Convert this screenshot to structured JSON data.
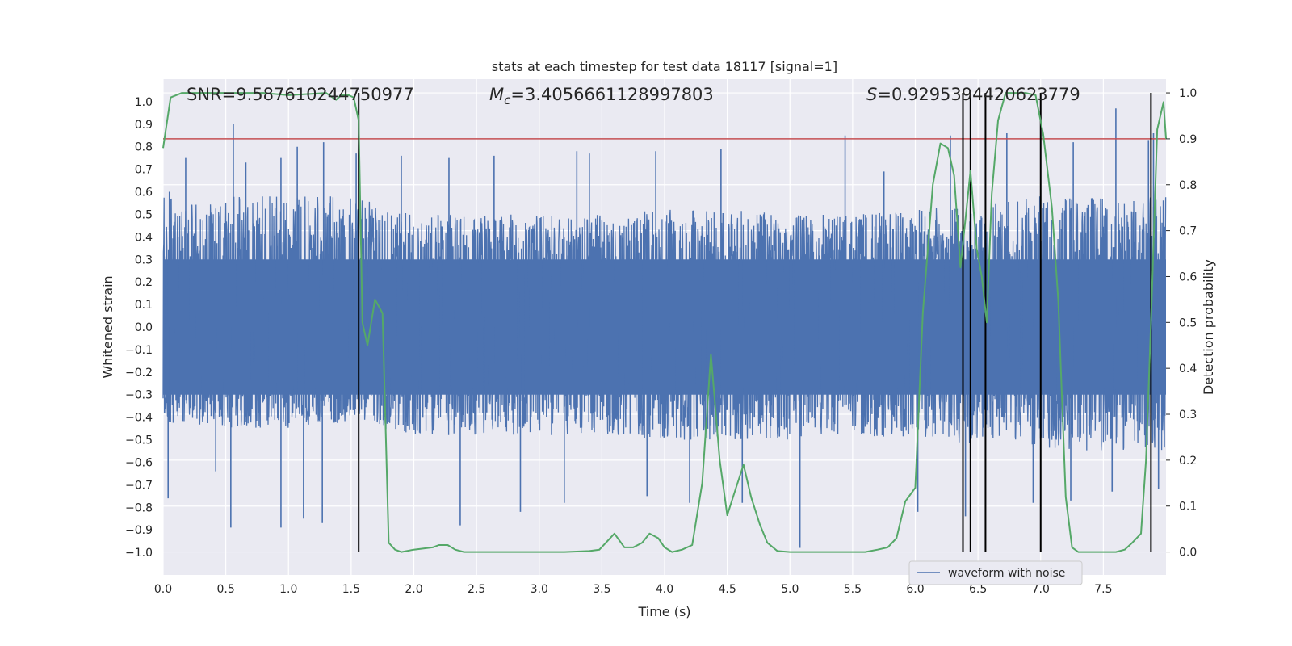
{
  "chart_data": {
    "type": "line",
    "title": "stats at each timestep for test data 18117 [signal=1]",
    "xlabel": "Time (s)",
    "ylabel_left": "Whitened strain",
    "ylabel_right": "Detection probability",
    "xlim": [
      0.0,
      8.0
    ],
    "ylim_left": [
      -1.1,
      1.1
    ],
    "ylim_right": [
      -0.05,
      1.03
    ],
    "x_ticks": [
      "0.0",
      "0.5",
      "1.0",
      "1.5",
      "2.0",
      "2.5",
      "3.0",
      "3.5",
      "4.0",
      "4.5",
      "5.0",
      "5.5",
      "6.0",
      "6.5",
      "7.0",
      "7.5"
    ],
    "y_ticks_left": [
      "1.0",
      "0.9",
      "0.8",
      "0.7",
      "0.6",
      "0.5",
      "0.4",
      "0.3",
      "0.2",
      "0.1",
      "0.0",
      "-0.1",
      "-0.2",
      "-0.3",
      "-0.4",
      "-0.5",
      "-0.6",
      "-0.7",
      "-0.8",
      "-0.9",
      "-1.0"
    ],
    "y_ticks_right": [
      "1.0",
      "0.9",
      "0.8",
      "0.7",
      "0.6",
      "0.5",
      "0.4",
      "0.3",
      "0.2",
      "0.1",
      "0.0"
    ],
    "annotations": {
      "snr": "SNR=9.587610244750977",
      "mc_symbol": "M",
      "mc_subscript": "c",
      "mc_value": "=3.4056661128997803",
      "s_symbol": "S",
      "s_value": "=0.9295394420623779"
    },
    "legend": {
      "placement": "lower-right",
      "entries": [
        "waveform with noise"
      ]
    },
    "grid": true,
    "threshold": {
      "axis": "right",
      "value": 0.9,
      "color": "#c44e52"
    },
    "vertical_markers": [
      1.56,
      6.38,
      6.44,
      6.56,
      7.0,
      7.88
    ],
    "series": [
      {
        "name": "waveform with noise",
        "axis": "left",
        "color": "#4c72b0",
        "envelope": {
          "x": [
            0.0,
            0.5,
            1.0,
            1.5,
            2.0,
            2.5,
            3.0,
            3.5,
            4.0,
            4.5,
            5.0,
            5.5,
            6.0,
            6.5,
            7.0,
            7.5,
            8.0
          ],
          "upper": [
            0.58,
            0.58,
            0.58,
            0.58,
            0.5,
            0.5,
            0.5,
            0.5,
            0.52,
            0.52,
            0.5,
            0.5,
            0.52,
            0.55,
            0.58,
            0.58,
            0.58
          ],
          "lower": [
            -0.42,
            -0.45,
            -0.45,
            -0.42,
            -0.48,
            -0.48,
            -0.48,
            -0.48,
            -0.5,
            -0.5,
            -0.5,
            -0.48,
            -0.5,
            -0.52,
            -0.55,
            -0.55,
            -0.55
          ],
          "dense_top": 0.3,
          "dense_bottom": -0.3
        },
        "spikes": [
          [
            0.05,
            0.6
          ],
          [
            0.04,
            -0.76
          ],
          [
            0.18,
            0.75
          ],
          [
            0.42,
            -0.64
          ],
          [
            0.56,
            0.9
          ],
          [
            0.54,
            -0.89
          ],
          [
            0.66,
            0.73
          ],
          [
            0.94,
            0.75
          ],
          [
            0.94,
            -0.89
          ],
          [
            1.07,
            0.8
          ],
          [
            1.12,
            -0.85
          ],
          [
            1.28,
            0.82
          ],
          [
            1.27,
            -0.87
          ],
          [
            1.54,
            0.77
          ],
          [
            1.9,
            0.76
          ],
          [
            2.28,
            0.75
          ],
          [
            2.37,
            -0.88
          ],
          [
            2.64,
            0.76
          ],
          [
            2.85,
            -0.82
          ],
          [
            3.3,
            0.78
          ],
          [
            3.2,
            -0.78
          ],
          [
            3.4,
            0.77
          ],
          [
            3.86,
            -0.75
          ],
          [
            3.93,
            0.78
          ],
          [
            4.2,
            -0.78
          ],
          [
            4.45,
            0.79
          ],
          [
            4.62,
            -0.78
          ],
          [
            5.08,
            -0.98
          ],
          [
            5.44,
            0.85
          ],
          [
            5.75,
            0.69
          ],
          [
            6.02,
            -0.82
          ],
          [
            6.28,
            0.85
          ],
          [
            6.4,
            -0.84
          ],
          [
            6.73,
            0.86
          ],
          [
            6.94,
            -0.78
          ],
          [
            7.26,
            0.82
          ],
          [
            7.24,
            -0.77
          ],
          [
            7.6,
            0.97
          ],
          [
            7.57,
            -0.73
          ],
          [
            7.86,
            0.83
          ],
          [
            7.9,
            0.86
          ],
          [
            7.94,
            -0.72
          ]
        ]
      },
      {
        "name": "",
        "axis": "right",
        "color": "#55a868",
        "x": [
          0.0,
          0.06,
          0.15,
          0.4,
          0.8,
          1.0,
          1.3,
          1.38,
          1.42,
          1.48,
          1.52,
          1.56,
          1.59,
          1.63,
          1.69,
          1.75,
          1.8,
          1.85,
          1.9,
          2.0,
          2.15,
          2.2,
          2.27,
          2.33,
          2.4,
          2.6,
          2.9,
          3.2,
          3.4,
          3.48,
          3.6,
          3.68,
          3.75,
          3.82,
          3.88,
          3.95,
          4.0,
          4.06,
          4.14,
          4.22,
          4.3,
          4.37,
          4.44,
          4.5,
          4.57,
          4.63,
          4.69,
          4.76,
          4.82,
          4.9,
          5.0,
          5.2,
          5.4,
          5.6,
          5.7,
          5.78,
          5.85,
          5.92,
          6.0,
          6.06,
          6.14,
          6.2,
          6.26,
          6.31,
          6.36,
          6.44,
          6.49,
          6.53,
          6.57,
          6.61,
          6.66,
          6.72,
          6.8,
          6.88,
          6.96,
          7.02,
          7.09,
          7.14,
          7.2,
          7.25,
          7.3,
          7.45,
          7.6,
          7.67,
          7.73,
          7.8,
          7.84,
          7.88,
          7.93,
          7.98,
          8.0
        ],
        "y": [
          0.88,
          0.99,
          1.0,
          1.0,
          1.0,
          0.995,
          1.0,
          0.985,
          0.995,
          0.995,
          0.99,
          0.94,
          0.5,
          0.45,
          0.55,
          0.52,
          0.02,
          0.005,
          0.0,
          0.005,
          0.01,
          0.015,
          0.015,
          0.005,
          0.0,
          0.0,
          0.0,
          0.0,
          0.002,
          0.005,
          0.04,
          0.01,
          0.01,
          0.02,
          0.04,
          0.03,
          0.01,
          0.0,
          0.005,
          0.015,
          0.15,
          0.43,
          0.2,
          0.08,
          0.14,
          0.19,
          0.12,
          0.06,
          0.02,
          0.002,
          0.0,
          0.0,
          0.0,
          0.0,
          0.005,
          0.01,
          0.03,
          0.11,
          0.14,
          0.52,
          0.8,
          0.89,
          0.88,
          0.82,
          0.62,
          0.83,
          0.66,
          0.6,
          0.5,
          0.78,
          0.94,
          1.0,
          1.0,
          1.0,
          0.995,
          0.91,
          0.75,
          0.55,
          0.12,
          0.01,
          0.0,
          0.0,
          0.0,
          0.005,
          0.02,
          0.04,
          0.2,
          0.5,
          0.92,
          0.98,
          0.9
        ]
      }
    ]
  }
}
